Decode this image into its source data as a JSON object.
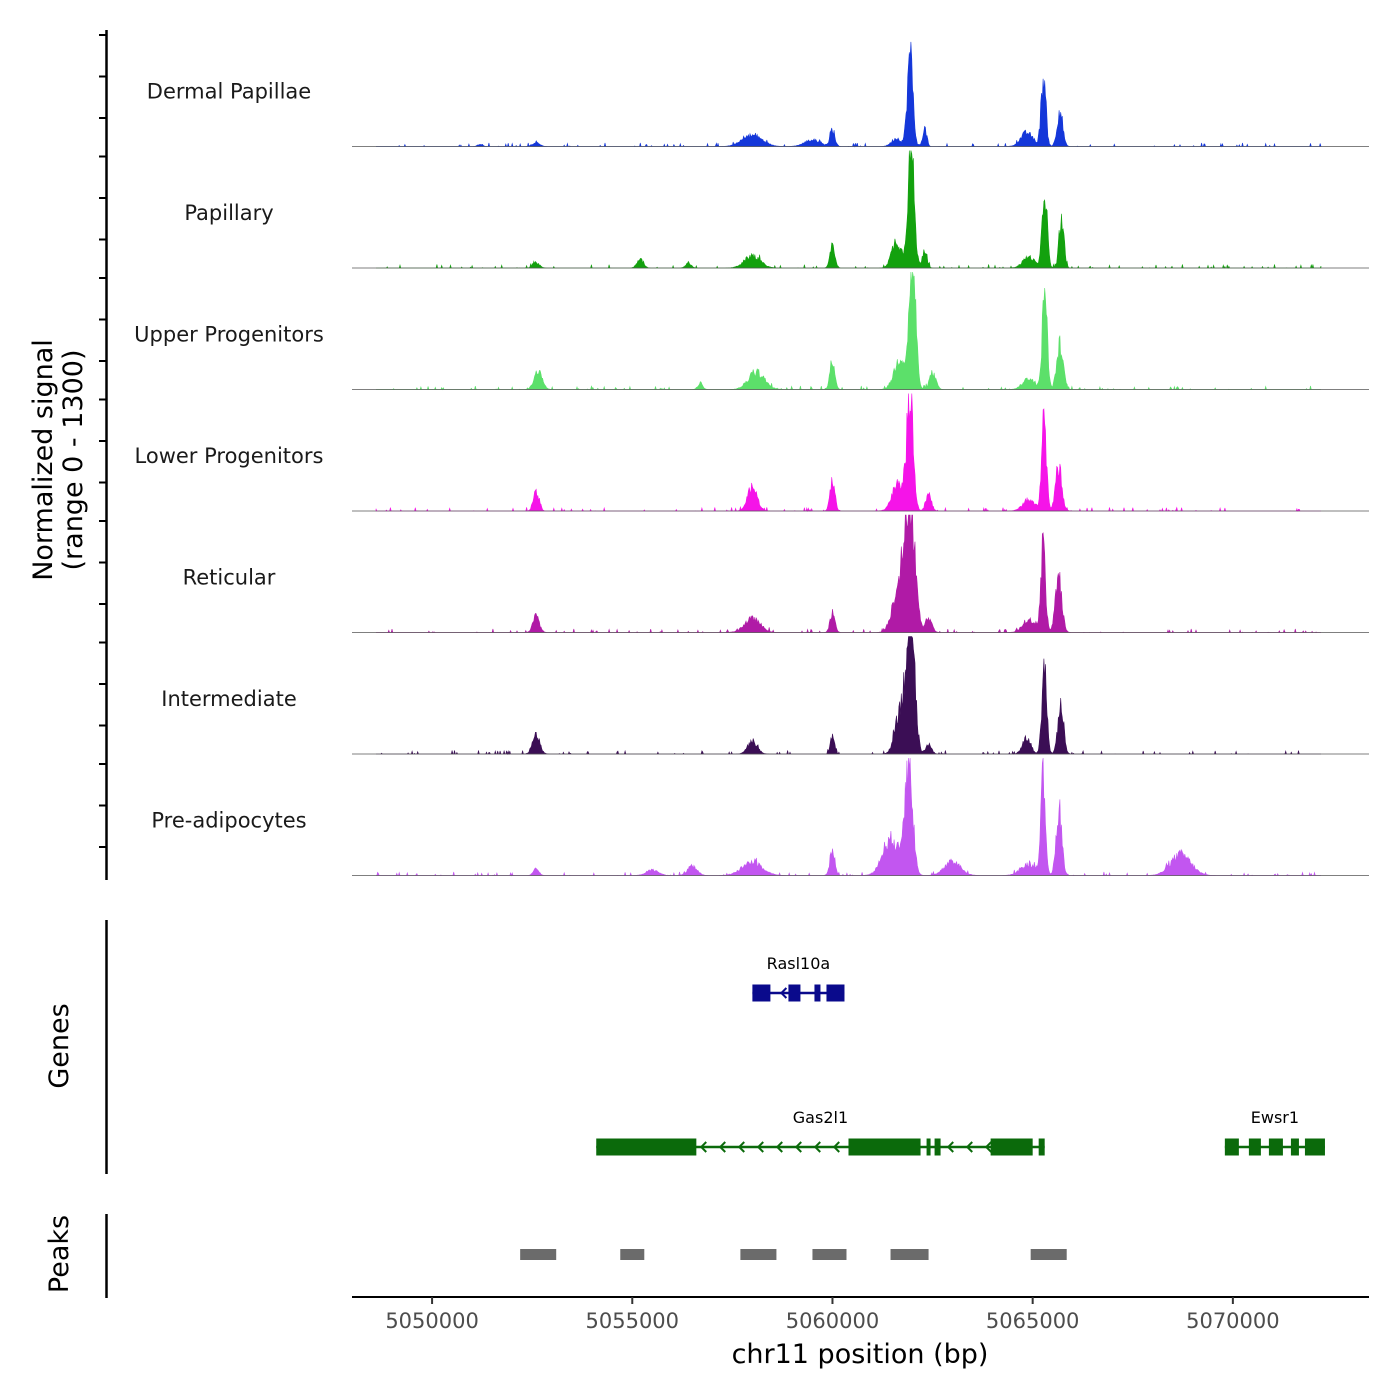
{
  "chart_data": {
    "type": "area",
    "title": "",
    "ylabel_line1": "Normalized signal",
    "ylabel_line2": "(range 0 - 1300)",
    "xlabel": "chr11 position (bp)",
    "ylim": [
      0,
      1300
    ],
    "xlim": [
      5048000,
      5073400
    ],
    "x_ticks": [
      5050000,
      5055000,
      5060000,
      5065000,
      5070000
    ],
    "x_tick_labels": [
      "5050000",
      "5055000",
      "5060000",
      "5065000",
      "5070000"
    ],
    "genes_label": "Genes",
    "peaks_label": "Peaks",
    "tracks": [
      {
        "name": "Dermal Papillae",
        "color": "#1437D9",
        "peaks": [
          [
            5061940,
            1000,
            70
          ],
          [
            5065270,
            760,
            60
          ],
          [
            5065680,
            400,
            70
          ],
          [
            5064850,
            150,
            150
          ],
          [
            5062300,
            200,
            50
          ],
          [
            5060000,
            180,
            60
          ],
          [
            5058000,
            120,
            250
          ],
          [
            5059500,
            70,
            200
          ],
          [
            5061600,
            90,
            120
          ],
          [
            5051200,
            25,
            60
          ],
          [
            5052600,
            40,
            90
          ]
        ]
      },
      {
        "name": "Papillary",
        "color": "#13A10E",
        "peaks": [
          [
            5061960,
            1300,
            80
          ],
          [
            5065300,
            880,
            60
          ],
          [
            5065720,
            560,
            60
          ],
          [
            5061600,
            300,
            120
          ],
          [
            5062300,
            200,
            60
          ],
          [
            5060000,
            260,
            60
          ],
          [
            5058000,
            130,
            200
          ],
          [
            5055200,
            90,
            80
          ],
          [
            5052600,
            60,
            80
          ],
          [
            5056400,
            50,
            70
          ],
          [
            5064900,
            120,
            150
          ]
        ]
      },
      {
        "name": "Upper Progenitors",
        "color": "#5CE06A",
        "peaks": [
          [
            5062000,
            1350,
            80
          ],
          [
            5065300,
            1100,
            60
          ],
          [
            5065680,
            480,
            80
          ],
          [
            5061700,
            350,
            150
          ],
          [
            5060000,
            330,
            60
          ],
          [
            5052650,
            200,
            100
          ],
          [
            5058100,
            190,
            200
          ],
          [
            5062500,
            180,
            80
          ],
          [
            5064900,
            120,
            150
          ],
          [
            5056700,
            70,
            60
          ]
        ]
      },
      {
        "name": "Lower Progenitors",
        "color": "#F514E8",
        "peaks": [
          [
            5061940,
            1250,
            80
          ],
          [
            5065280,
            1030,
            60
          ],
          [
            5065650,
            480,
            80
          ],
          [
            5061650,
            320,
            150
          ],
          [
            5060000,
            330,
            60
          ],
          [
            5058000,
            260,
            120
          ],
          [
            5052600,
            200,
            70
          ],
          [
            5062400,
            180,
            70
          ],
          [
            5064900,
            120,
            150
          ]
        ]
      },
      {
        "name": "Reticular",
        "color": "#B01AA6",
        "peaks": [
          [
            5061930,
            1500,
            120
          ],
          [
            5065260,
            950,
            60
          ],
          [
            5065650,
            600,
            80
          ],
          [
            5061650,
            500,
            150
          ],
          [
            5060000,
            220,
            60
          ],
          [
            5058000,
            150,
            200
          ],
          [
            5052600,
            180,
            80
          ],
          [
            5062400,
            160,
            80
          ],
          [
            5064900,
            140,
            150
          ]
        ]
      },
      {
        "name": "Intermediate",
        "color": "#3B0E55",
        "peaks": [
          [
            5061950,
            1460,
            100
          ],
          [
            5065290,
            980,
            60
          ],
          [
            5065700,
            580,
            70
          ],
          [
            5061700,
            500,
            130
          ],
          [
            5060000,
            220,
            50
          ],
          [
            5058000,
            140,
            120
          ],
          [
            5052600,
            200,
            90
          ],
          [
            5062400,
            120,
            70
          ],
          [
            5064850,
            180,
            100
          ]
        ]
      },
      {
        "name": "Pre-adipocytes",
        "color": "#C256F0",
        "peaks": [
          [
            5061900,
            1220,
            100
          ],
          [
            5065260,
            1040,
            60
          ],
          [
            5065660,
            740,
            70
          ],
          [
            5061450,
            400,
            200
          ],
          [
            5060000,
            300,
            60
          ],
          [
            5058000,
            150,
            250
          ],
          [
            5068700,
            230,
            250
          ],
          [
            5052600,
            70,
            70
          ],
          [
            5063000,
            150,
            200
          ],
          [
            5064900,
            120,
            200
          ],
          [
            5056500,
            100,
            120
          ],
          [
            5055500,
            60,
            150
          ]
        ]
      }
    ],
    "genes": [
      {
        "name": "Rasl10a",
        "color": "#0A0A8C",
        "row": 1,
        "strand": "-",
        "start": 5058000,
        "end": 5060300,
        "exons": [
          [
            5058000,
            5058450
          ],
          [
            5058900,
            5059200
          ],
          [
            5059550,
            5059700
          ],
          [
            5059850,
            5060300
          ]
        ]
      },
      {
        "name": "Gas2l1",
        "color": "#0B6A0B",
        "row": 2,
        "strand": "-",
        "start": 5054100,
        "end": 5065300,
        "exons": [
          [
            5054100,
            5056600
          ],
          [
            5060400,
            5062200
          ],
          [
            5062350,
            5062450
          ],
          [
            5062550,
            5062700
          ],
          [
            5063950,
            5065000
          ],
          [
            5065150,
            5065300
          ]
        ]
      },
      {
        "name": "Ewsr1",
        "color": "#0B6A0B",
        "row": 2,
        "strand": "+",
        "start": 5069800,
        "end": 5072300,
        "exons": [
          [
            5069800,
            5070150
          ],
          [
            5070400,
            5070700
          ],
          [
            5070900,
            5071250
          ],
          [
            5071450,
            5071650
          ],
          [
            5071800,
            5072300
          ]
        ]
      }
    ],
    "peaks": [
      [
        5052200,
        5053100
      ],
      [
        5054700,
        5055300
      ],
      [
        5057700,
        5058600
      ],
      [
        5059500,
        5060350
      ],
      [
        5061450,
        5062400
      ],
      [
        5064950,
        5065850
      ]
    ]
  }
}
